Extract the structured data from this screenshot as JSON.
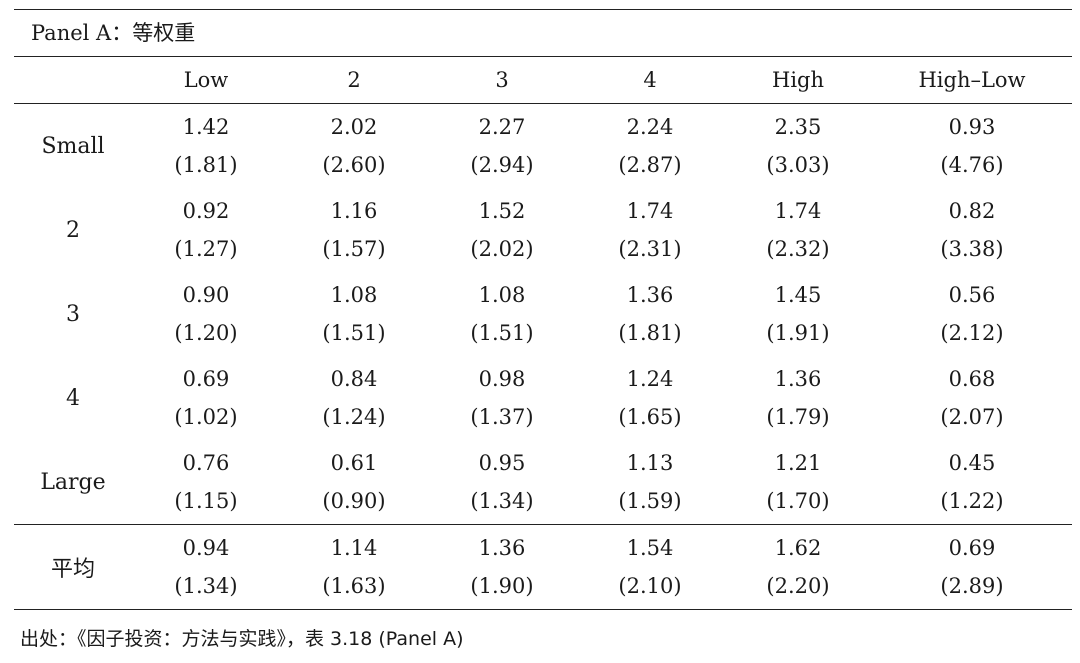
{
  "panel_title": "Panel A：等权重",
  "columns": [
    "Low",
    "2",
    "3",
    "4",
    "High",
    "High–Low"
  ],
  "rows": [
    {
      "label": "Small",
      "values": [
        "1.42",
        "2.02",
        "2.27",
        "2.24",
        "2.35",
        "0.93"
      ],
      "tstats": [
        "(1.81)",
        "(2.60)",
        "(2.94)",
        "(2.87)",
        "(3.03)",
        "(4.76)"
      ]
    },
    {
      "label": "2",
      "values": [
        "0.92",
        "1.16",
        "1.52",
        "1.74",
        "1.74",
        "0.82"
      ],
      "tstats": [
        "(1.27)",
        "(1.57)",
        "(2.02)",
        "(2.31)",
        "(2.32)",
        "(3.38)"
      ]
    },
    {
      "label": "3",
      "values": [
        "0.90",
        "1.08",
        "1.08",
        "1.36",
        "1.45",
        "0.56"
      ],
      "tstats": [
        "(1.20)",
        "(1.51)",
        "(1.51)",
        "(1.81)",
        "(1.91)",
        "(2.12)"
      ]
    },
    {
      "label": "4",
      "values": [
        "0.69",
        "0.84",
        "0.98",
        "1.24",
        "1.36",
        "0.68"
      ],
      "tstats": [
        "(1.02)",
        "(1.24)",
        "(1.37)",
        "(1.65)",
        "(1.79)",
        "(2.07)"
      ]
    },
    {
      "label": "Large",
      "values": [
        "0.76",
        "0.61",
        "0.95",
        "1.13",
        "1.21",
        "0.45"
      ],
      "tstats": [
        "(1.15)",
        "(0.90)",
        "(1.34)",
        "(1.59)",
        "(1.70)",
        "(1.22)"
      ]
    }
  ],
  "average": {
    "label": "平均",
    "values": [
      "0.94",
      "1.14",
      "1.36",
      "1.54",
      "1.62",
      "0.69"
    ],
    "tstats": [
      "(1.34)",
      "(1.63)",
      "(1.90)",
      "(2.10)",
      "(2.20)",
      "(2.89)"
    ]
  },
  "source": "出处：《因子投资：方法与实践》，表 3.18 (Panel A)"
}
